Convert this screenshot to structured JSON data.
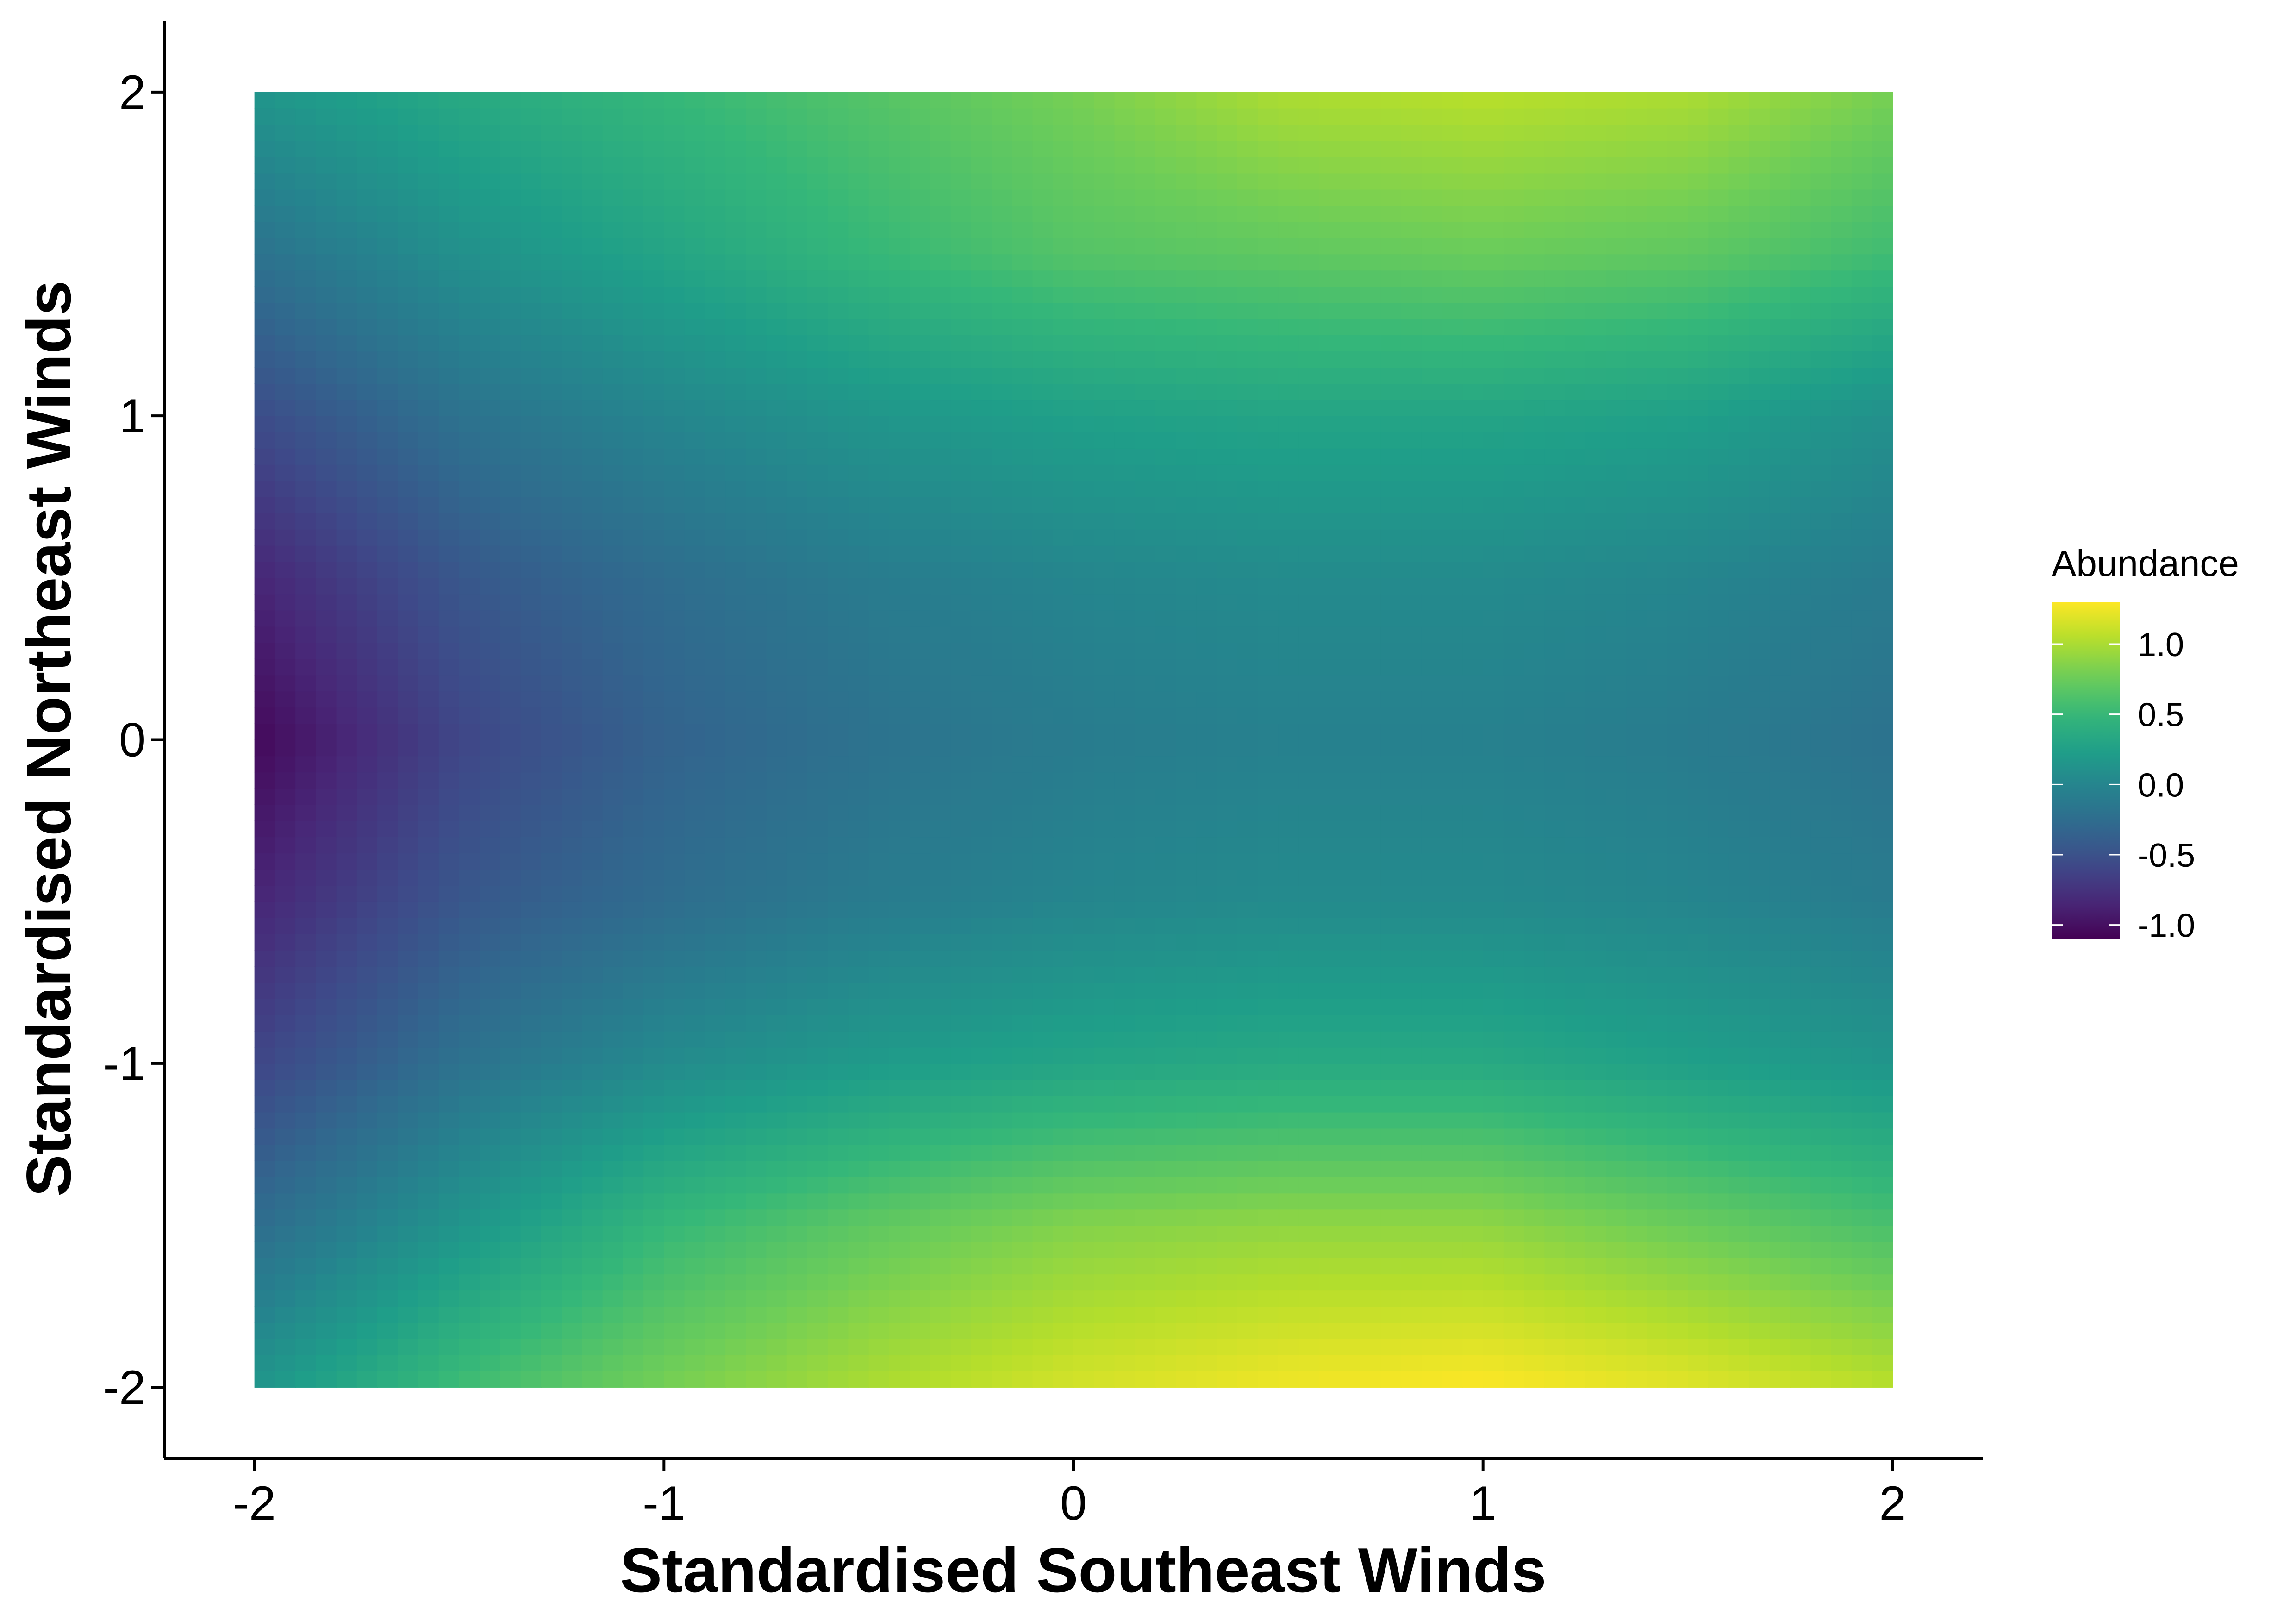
{
  "chart_data": {
    "type": "heatmap",
    "xlabel": "Standardised Southeast Winds",
    "ylabel": "Standardised Northeast Winds",
    "x_ticks": [
      -2,
      -1,
      0,
      1,
      2
    ],
    "y_ticks": [
      -2,
      -1,
      0,
      1,
      2
    ],
    "xlim": [
      -2.22,
      2.22
    ],
    "ylim": [
      -2.22,
      2.22
    ],
    "data_extent": {
      "x": [
        -2,
        2
      ],
      "y": [
        -2,
        2
      ]
    },
    "grid": false,
    "colormap": "viridis",
    "legend": {
      "title": "Abundance",
      "ticks": [
        "1.0",
        "0.5",
        "0.0",
        "-0.5",
        "-1.0"
      ],
      "tick_values": [
        1.0,
        0.5,
        0.0,
        -0.5,
        -1.0
      ],
      "range": [
        -1.1,
        1.3
      ],
      "placement": "right"
    },
    "grid_x": [
      -2.0,
      -1.5,
      -1.0,
      -0.5,
      0.0,
      0.5,
      1.0,
      1.5,
      2.0
    ],
    "grid_y": [
      -2.0,
      -1.5,
      -1.0,
      -0.5,
      0.0,
      0.5,
      1.0,
      1.5,
      2.0
    ],
    "z": [
      [
        0.15,
        0.55,
        0.8,
        1.0,
        1.15,
        1.25,
        1.3,
        1.2,
        1.05
      ],
      [
        -0.25,
        0.15,
        0.5,
        0.7,
        0.85,
        0.9,
        0.9,
        0.75,
        0.6
      ],
      [
        -0.6,
        -0.2,
        0.05,
        0.2,
        0.3,
        0.35,
        0.35,
        0.25,
        0.15
      ],
      [
        -0.85,
        -0.45,
        -0.25,
        -0.1,
        0.0,
        0.05,
        0.05,
        0.0,
        -0.1
      ],
      [
        -1.05,
        -0.6,
        -0.35,
        -0.2,
        -0.1,
        -0.05,
        -0.05,
        -0.1,
        -0.2
      ],
      [
        -0.85,
        -0.45,
        -0.25,
        -0.1,
        0.0,
        0.05,
        0.05,
        0.0,
        -0.1
      ],
      [
        -0.55,
        -0.2,
        0.0,
        0.15,
        0.25,
        0.3,
        0.3,
        0.25,
        0.1
      ],
      [
        -0.2,
        0.1,
        0.3,
        0.5,
        0.65,
        0.7,
        0.75,
        0.7,
        0.55
      ],
      [
        0.15,
        0.35,
        0.5,
        0.65,
        0.8,
        1.0,
        1.05,
        1.0,
        0.8
      ]
    ]
  }
}
